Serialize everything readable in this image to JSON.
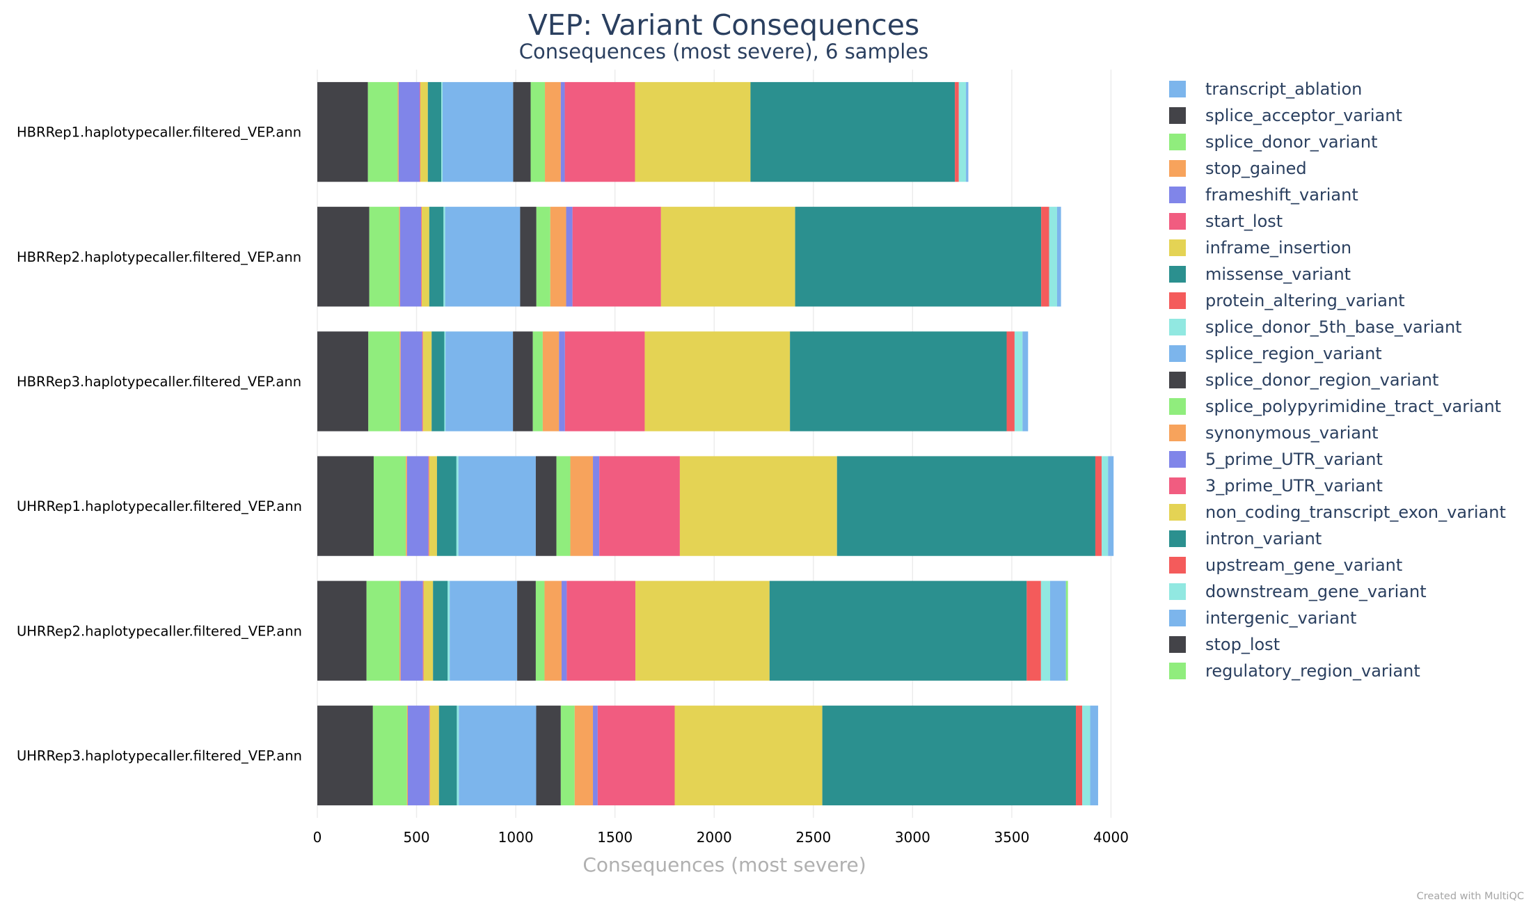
{
  "chart_data": {
    "type": "bar",
    "orientation": "horizontal",
    "stacked": true,
    "title": "VEP: Variant Consequences",
    "subtitle": "Consequences (most severe), 6 samples",
    "xlabel": "Consequences (most severe)",
    "xlim": [
      0,
      4100
    ],
    "xticks": [
      0,
      500,
      1000,
      1500,
      2000,
      2500,
      3000,
      3500,
      4000
    ],
    "grid": true,
    "legend_position": "right",
    "categories": [
      "HBRRep1.haplotypecaller.filtered_VEP.ann",
      "HBRRep2.haplotypecaller.filtered_VEP.ann",
      "HBRRep3.haplotypecaller.filtered_VEP.ann",
      "UHRRep1.haplotypecaller.filtered_VEP.ann",
      "UHRRep2.haplotypecaller.filtered_VEP.ann",
      "UHRRep3.haplotypecaller.filtered_VEP.ann"
    ],
    "series": [
      {
        "name": "transcript_ablation",
        "color": "#7cb5ec",
        "values": [
          0,
          0,
          0,
          0,
          0,
          0
        ]
      },
      {
        "name": "splice_acceptor_variant",
        "color": "#434348",
        "values": [
          255,
          262,
          257,
          284,
          248,
          280
        ]
      },
      {
        "name": "splice_donor_variant",
        "color": "#90ed7d",
        "values": [
          150,
          150,
          158,
          162,
          166,
          172
        ]
      },
      {
        "name": "stop_gained",
        "color": "#f7a35c",
        "values": [
          5,
          5,
          5,
          6,
          6,
          4
        ]
      },
      {
        "name": "frameshift_variant",
        "color": "#8085e9",
        "values": [
          106,
          106,
          108,
          108,
          112,
          108
        ]
      },
      {
        "name": "start_lost",
        "color": "#f15c80",
        "values": [
          3,
          3,
          4,
          3,
          3,
          3
        ]
      },
      {
        "name": "inframe_insertion",
        "color": "#e4d354",
        "values": [
          38,
          38,
          44,
          40,
          48,
          46
        ]
      },
      {
        "name": "missense_variant",
        "color": "#2b908f",
        "values": [
          68,
          72,
          64,
          98,
          74,
          90
        ]
      },
      {
        "name": "protein_altering_variant",
        "color": "#f45b5b",
        "values": [
          0,
          0,
          0,
          0,
          0,
          0
        ]
      },
      {
        "name": "splice_donor_5th_base_variant",
        "color": "#91e8e1",
        "values": [
          6,
          8,
          6,
          10,
          10,
          10
        ]
      },
      {
        "name": "splice_region_variant",
        "color": "#7cb5ec",
        "values": [
          356,
          378,
          340,
          390,
          340,
          390
        ]
      },
      {
        "name": "splice_donor_region_variant",
        "color": "#434348",
        "values": [
          88,
          82,
          100,
          104,
          94,
          124
        ]
      },
      {
        "name": "splice_polypyrimidine_tract_variant",
        "color": "#90ed7d",
        "values": [
          72,
          70,
          50,
          70,
          44,
          70
        ]
      },
      {
        "name": "synonymous_variant",
        "color": "#f7a35c",
        "values": [
          80,
          80,
          82,
          114,
          86,
          92
        ]
      },
      {
        "name": "5_prime_UTR_variant",
        "color": "#8085e9",
        "values": [
          20,
          32,
          30,
          32,
          26,
          24
        ]
      },
      {
        "name": "3_prime_UTR_variant",
        "color": "#f15c80",
        "values": [
          354,
          446,
          402,
          406,
          346,
          388
        ]
      },
      {
        "name": "non_coding_transcript_exon_variant",
        "color": "#e4d354",
        "values": [
          582,
          676,
          732,
          792,
          676,
          744
        ]
      },
      {
        "name": "intron_variant",
        "color": "#2b908f",
        "values": [
          1030,
          1240,
          1092,
          1302,
          1296,
          1278
        ]
      },
      {
        "name": "upstream_gene_variant",
        "color": "#f45b5b",
        "values": [
          20,
          40,
          40,
          32,
          72,
          32
        ]
      },
      {
        "name": "downstream_gene_variant",
        "color": "#91e8e1",
        "values": [
          36,
          40,
          40,
          32,
          46,
          40
        ]
      },
      {
        "name": "intergenic_variant",
        "color": "#7cb5ec",
        "values": [
          12,
          20,
          28,
          28,
          80,
          40
        ]
      },
      {
        "name": "stop_lost",
        "color": "#434348",
        "values": [
          0,
          0,
          0,
          0,
          0,
          0
        ]
      },
      {
        "name": "regulatory_region_variant",
        "color": "#90ed7d",
        "values": [
          0,
          0,
          0,
          0,
          10,
          0
        ]
      }
    ]
  },
  "footer": {
    "credit": "Created with MultiQC"
  }
}
